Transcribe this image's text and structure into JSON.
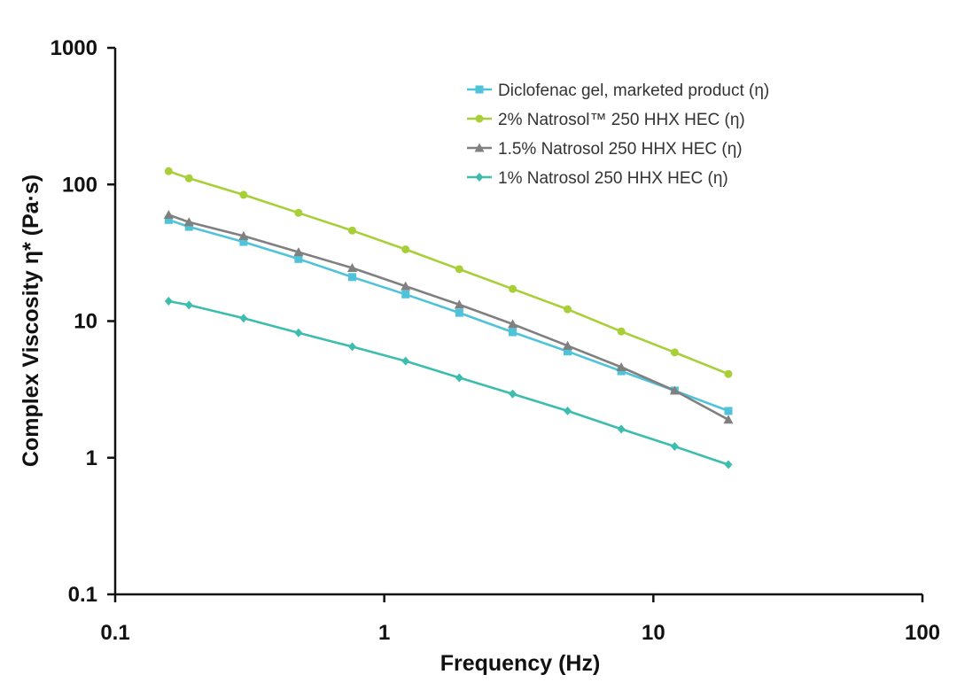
{
  "chart_data": {
    "type": "line",
    "x_scale": "log",
    "y_scale": "log",
    "xlabel": "Frequency (Hz)",
    "ylabel": "Complex Viscosity η* (Pa·s)",
    "xlim": [
      0.1,
      100
    ],
    "ylim": [
      0.1,
      1000
    ],
    "x_ticks": [
      0.1,
      1,
      10,
      100
    ],
    "x_tick_labels": [
      "0.1",
      "1",
      "10",
      "100"
    ],
    "y_ticks": [
      0.1,
      1,
      10,
      100,
      1000
    ],
    "y_tick_labels": [
      "0.1",
      "1",
      "10",
      "100",
      "1000"
    ],
    "grid": false,
    "legend_position": "top-right",
    "x": [
      0.158,
      0.188,
      0.3,
      0.48,
      0.76,
      1.2,
      1.9,
      3.0,
      4.8,
      7.6,
      12.0,
      19.0
    ],
    "series": [
      {
        "name": "Diclofenac gel, marketed product (η)",
        "color": "#4fc3d9",
        "marker": "square",
        "values": [
          55,
          49,
          38,
          28.5,
          21,
          15.7,
          11.5,
          8.3,
          6.0,
          4.3,
          3.1,
          2.2
        ]
      },
      {
        "name": "2% Natrosol™  250 HHX HEC (η)",
        "color": "#a9cf38",
        "marker": "circle",
        "values": [
          125,
          111,
          84,
          62,
          46,
          33.5,
          24,
          17.2,
          12.2,
          8.4,
          5.9,
          4.1
        ]
      },
      {
        "name": "1.5% Natrosol 250  HHX HEC (η)",
        "color": "#808080",
        "marker": "triangle",
        "values": [
          60,
          53,
          42,
          32,
          24.5,
          18,
          13.2,
          9.5,
          6.6,
          4.6,
          3.1,
          1.9
        ]
      },
      {
        "name": "1% Natrosol 250  HHX HEC (η)",
        "color": "#3dbdae",
        "marker": "diamond",
        "values": [
          14,
          13.1,
          10.5,
          8.2,
          6.5,
          5.1,
          3.85,
          2.93,
          2.2,
          1.62,
          1.21,
          0.89
        ]
      }
    ]
  }
}
